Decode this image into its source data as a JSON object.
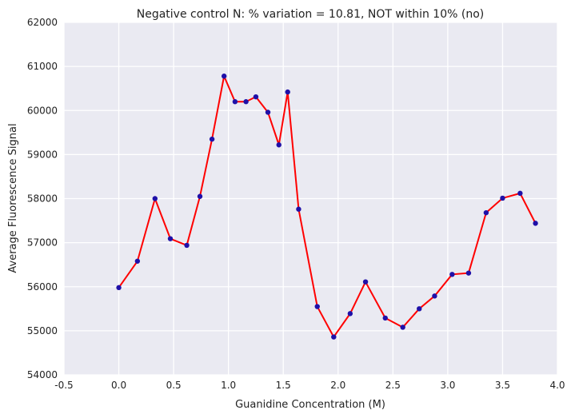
{
  "chart_data": {
    "type": "line",
    "title": "Negative control N: % variation = 10.81, NOT within 10% (no)",
    "xlabel": "Guanidine Concentration (M)",
    "ylabel": "Average Fluorescence Signal",
    "xlim": [
      -0.5,
      4.0
    ],
    "ylim": [
      54000,
      62000
    ],
    "xticks": [
      "-0.5",
      "0.0",
      "0.5",
      "1.0",
      "1.5",
      "2.0",
      "2.5",
      "3.0",
      "3.5",
      "4.0"
    ],
    "yticks": [
      "54000",
      "55000",
      "56000",
      "57000",
      "58000",
      "59000",
      "60000",
      "61000",
      "62000"
    ],
    "grid": true,
    "background_color": "#eaeaf2",
    "line_color": "#ff0000",
    "marker_color": "#1f10a8",
    "series": [
      {
        "x": [
          0.0,
          0.17,
          0.33,
          0.47,
          0.62,
          0.74,
          0.85,
          0.96,
          1.06,
          1.16,
          1.25,
          1.36,
          1.46,
          1.54,
          1.64,
          1.81,
          1.96,
          2.11,
          2.25,
          2.43,
          2.59,
          2.74,
          2.88,
          3.04,
          3.19,
          3.35,
          3.5,
          3.66,
          3.8
        ],
        "y": [
          55980,
          56580,
          58000,
          57090,
          56940,
          58050,
          59350,
          60780,
          60200,
          60200,
          60310,
          59960,
          59220,
          60420,
          57760,
          55550,
          54860,
          55390,
          56110,
          55290,
          55080,
          55500,
          55790,
          56280,
          56310,
          57680,
          58010,
          58120,
          57440
        ]
      }
    ]
  }
}
